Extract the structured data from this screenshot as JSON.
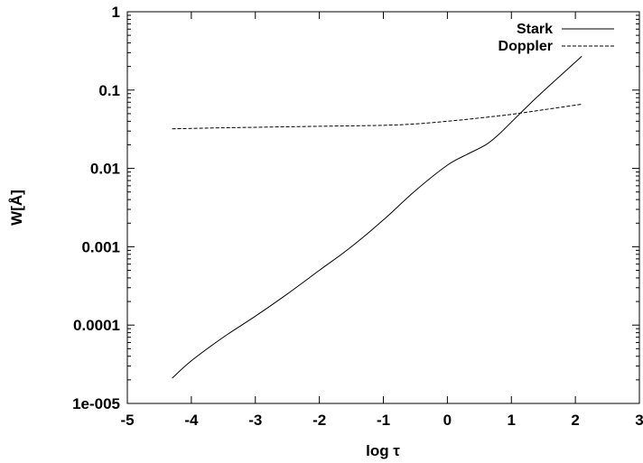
{
  "chart_data": {
    "type": "line",
    "title": "",
    "xlabel": "log τ",
    "ylabel": "W[Å]",
    "xlim": [
      -5,
      3
    ],
    "ylim": [
      1e-05,
      1
    ],
    "yscale": "log",
    "grid": false,
    "legend_position": "top-right",
    "x_ticks": [
      -5,
      -4,
      -3,
      -2,
      -1,
      0,
      1,
      2,
      3
    ],
    "x_tick_labels": [
      "-5",
      "-4",
      "-3",
      "-2",
      "-1",
      "0",
      "1",
      "2",
      "3"
    ],
    "y_ticks": [
      1e-05,
      0.0001,
      0.001,
      0.01,
      0.1,
      1
    ],
    "y_tick_labels": [
      "1e-005",
      "0.0001",
      "0.001",
      "0.01",
      "0.1",
      "1"
    ],
    "series": [
      {
        "name": "Stark",
        "style": "solid",
        "color": "#000000",
        "x": [
          -4.3,
          -4.0,
          -3.5,
          -3.0,
          -2.5,
          -2.0,
          -1.5,
          -1.0,
          -0.5,
          0.0,
          0.3,
          0.6,
          0.8,
          1.0,
          1.3,
          1.6,
          2.1
        ],
        "y": [
          2.1e-05,
          3.5e-05,
          7e-05,
          0.00013,
          0.00025,
          0.0005,
          0.001,
          0.0022,
          0.0052,
          0.011,
          0.015,
          0.02,
          0.027,
          0.039,
          0.068,
          0.115,
          0.27
        ]
      },
      {
        "name": "Doppler",
        "style": "dashed",
        "color": "#000000",
        "x": [
          -4.3,
          -3.5,
          -3.0,
          -2.0,
          -1.0,
          -0.5,
          0.0,
          0.5,
          1.0,
          1.5,
          2.1
        ],
        "y": [
          0.032,
          0.033,
          0.0335,
          0.0345,
          0.0355,
          0.037,
          0.04,
          0.044,
          0.049,
          0.056,
          0.066
        ]
      }
    ]
  }
}
